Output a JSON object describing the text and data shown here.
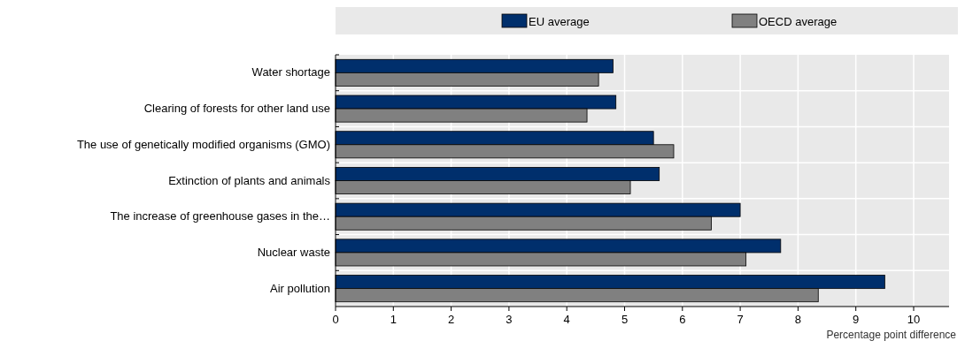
{
  "chart_data": {
    "type": "bar",
    "orientation": "horizontal",
    "categories": [
      "Water shortage",
      "Clearing of forests for other land use",
      "The use of genetically modified organisms (GMO)",
      "Extinction of plants and animals",
      "The increase of greenhouse gases in the…",
      "Nuclear waste",
      "Air pollution"
    ],
    "series": [
      {
        "name": "EU average",
        "color": "#002f6c",
        "values": [
          4.8,
          4.85,
          5.5,
          5.6,
          7.0,
          7.7,
          9.5
        ]
      },
      {
        "name": "OECD average",
        "color": "#808080",
        "values": [
          4.55,
          4.35,
          5.85,
          5.1,
          6.5,
          7.1,
          8.35
        ]
      }
    ],
    "xlim": [
      0,
      10
    ],
    "xticks": [
      0,
      1,
      2,
      3,
      4,
      5,
      6,
      7,
      8,
      9,
      10
    ],
    "xlabel": "Percentage point difference",
    "grid": "x",
    "legend": "top"
  }
}
